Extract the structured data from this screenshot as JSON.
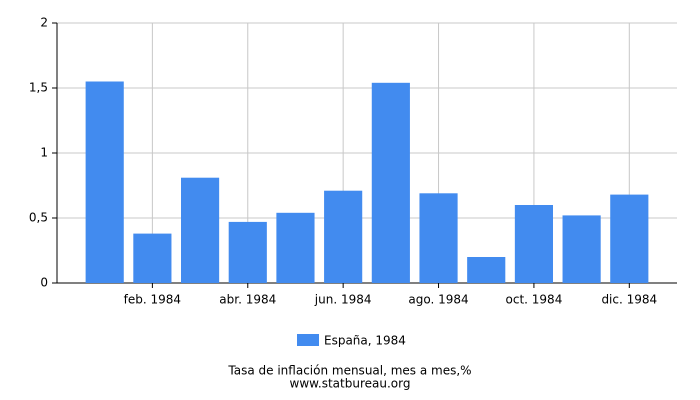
{
  "chart_data": {
    "type": "bar",
    "title": "Tasa de inflación mensual, mes a mes,%",
    "source": "www.statbureau.org",
    "categories": [
      null,
      "feb. 1984",
      null,
      "abr. 1984",
      null,
      "jun. 1984",
      null,
      "ago. 1984",
      null,
      "oct. 1984",
      null,
      "dic. 1984"
    ],
    "series": [
      {
        "name": "España, 1984",
        "color": "#428bef",
        "values": [
          1.55,
          0.38,
          0.81,
          0.47,
          0.54,
          0.71,
          1.54,
          0.69,
          0.2,
          0.6,
          0.52,
          0.68
        ]
      }
    ],
    "ylim": [
      0,
      2
    ],
    "yticks": [
      0,
      {
        "value": 0.5,
        "label": "0,5"
      },
      1,
      {
        "value": 1.5,
        "label": "1,5"
      },
      2
    ],
    "grid": true
  }
}
